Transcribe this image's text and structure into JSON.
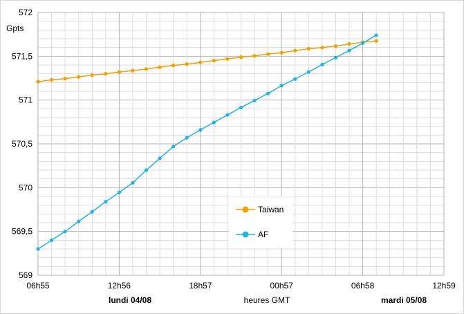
{
  "chart_data": {
    "type": "line",
    "ylabel": "Gpts",
    "xlabel": "heures GMT",
    "ylim": [
      569,
      572
    ],
    "y_ticks": [
      "569",
      "569,5",
      "570",
      "570,5",
      "571",
      "571,5",
      "572"
    ],
    "x_ticks": [
      "06h55",
      "12h56",
      "18h57",
      "00h57",
      "06h58",
      "12h59"
    ],
    "date_labels": [
      "lundi 04/08",
      "mardi 05/08"
    ],
    "x_range_hours": [
      0,
      30
    ],
    "grid": true,
    "legend_placement": "lower-center",
    "series": [
      {
        "name": "Taiwan",
        "color": "#f5a000",
        "x": [
          0,
          1,
          2,
          3,
          4,
          5,
          6,
          7,
          8,
          9,
          10,
          11,
          12,
          13,
          14,
          15,
          16,
          17,
          18,
          19,
          20,
          21,
          22,
          23,
          24,
          25
        ],
        "values": [
          571.21,
          571.23,
          571.245,
          571.265,
          571.285,
          571.3,
          571.32,
          571.335,
          571.355,
          571.375,
          571.395,
          571.41,
          571.43,
          571.45,
          571.47,
          571.49,
          571.505,
          571.525,
          571.54,
          571.565,
          571.585,
          571.6,
          571.615,
          571.64,
          571.66,
          571.675
        ]
      },
      {
        "name": "AF",
        "color": "#1eb4e6",
        "x": [
          0,
          1,
          2,
          3,
          4,
          5,
          6,
          7,
          8,
          9,
          10,
          11,
          12,
          13,
          14,
          15,
          16,
          17,
          18,
          19,
          20,
          21,
          22,
          23,
          24,
          25
        ],
        "values": [
          569.3,
          569.4,
          569.5,
          569.615,
          569.725,
          569.84,
          569.945,
          570.055,
          570.2,
          570.335,
          570.47,
          570.57,
          570.66,
          570.745,
          570.83,
          570.915,
          570.995,
          571.075,
          571.165,
          571.24,
          571.32,
          571.405,
          571.485,
          571.565,
          571.65,
          571.74
        ]
      }
    ]
  }
}
